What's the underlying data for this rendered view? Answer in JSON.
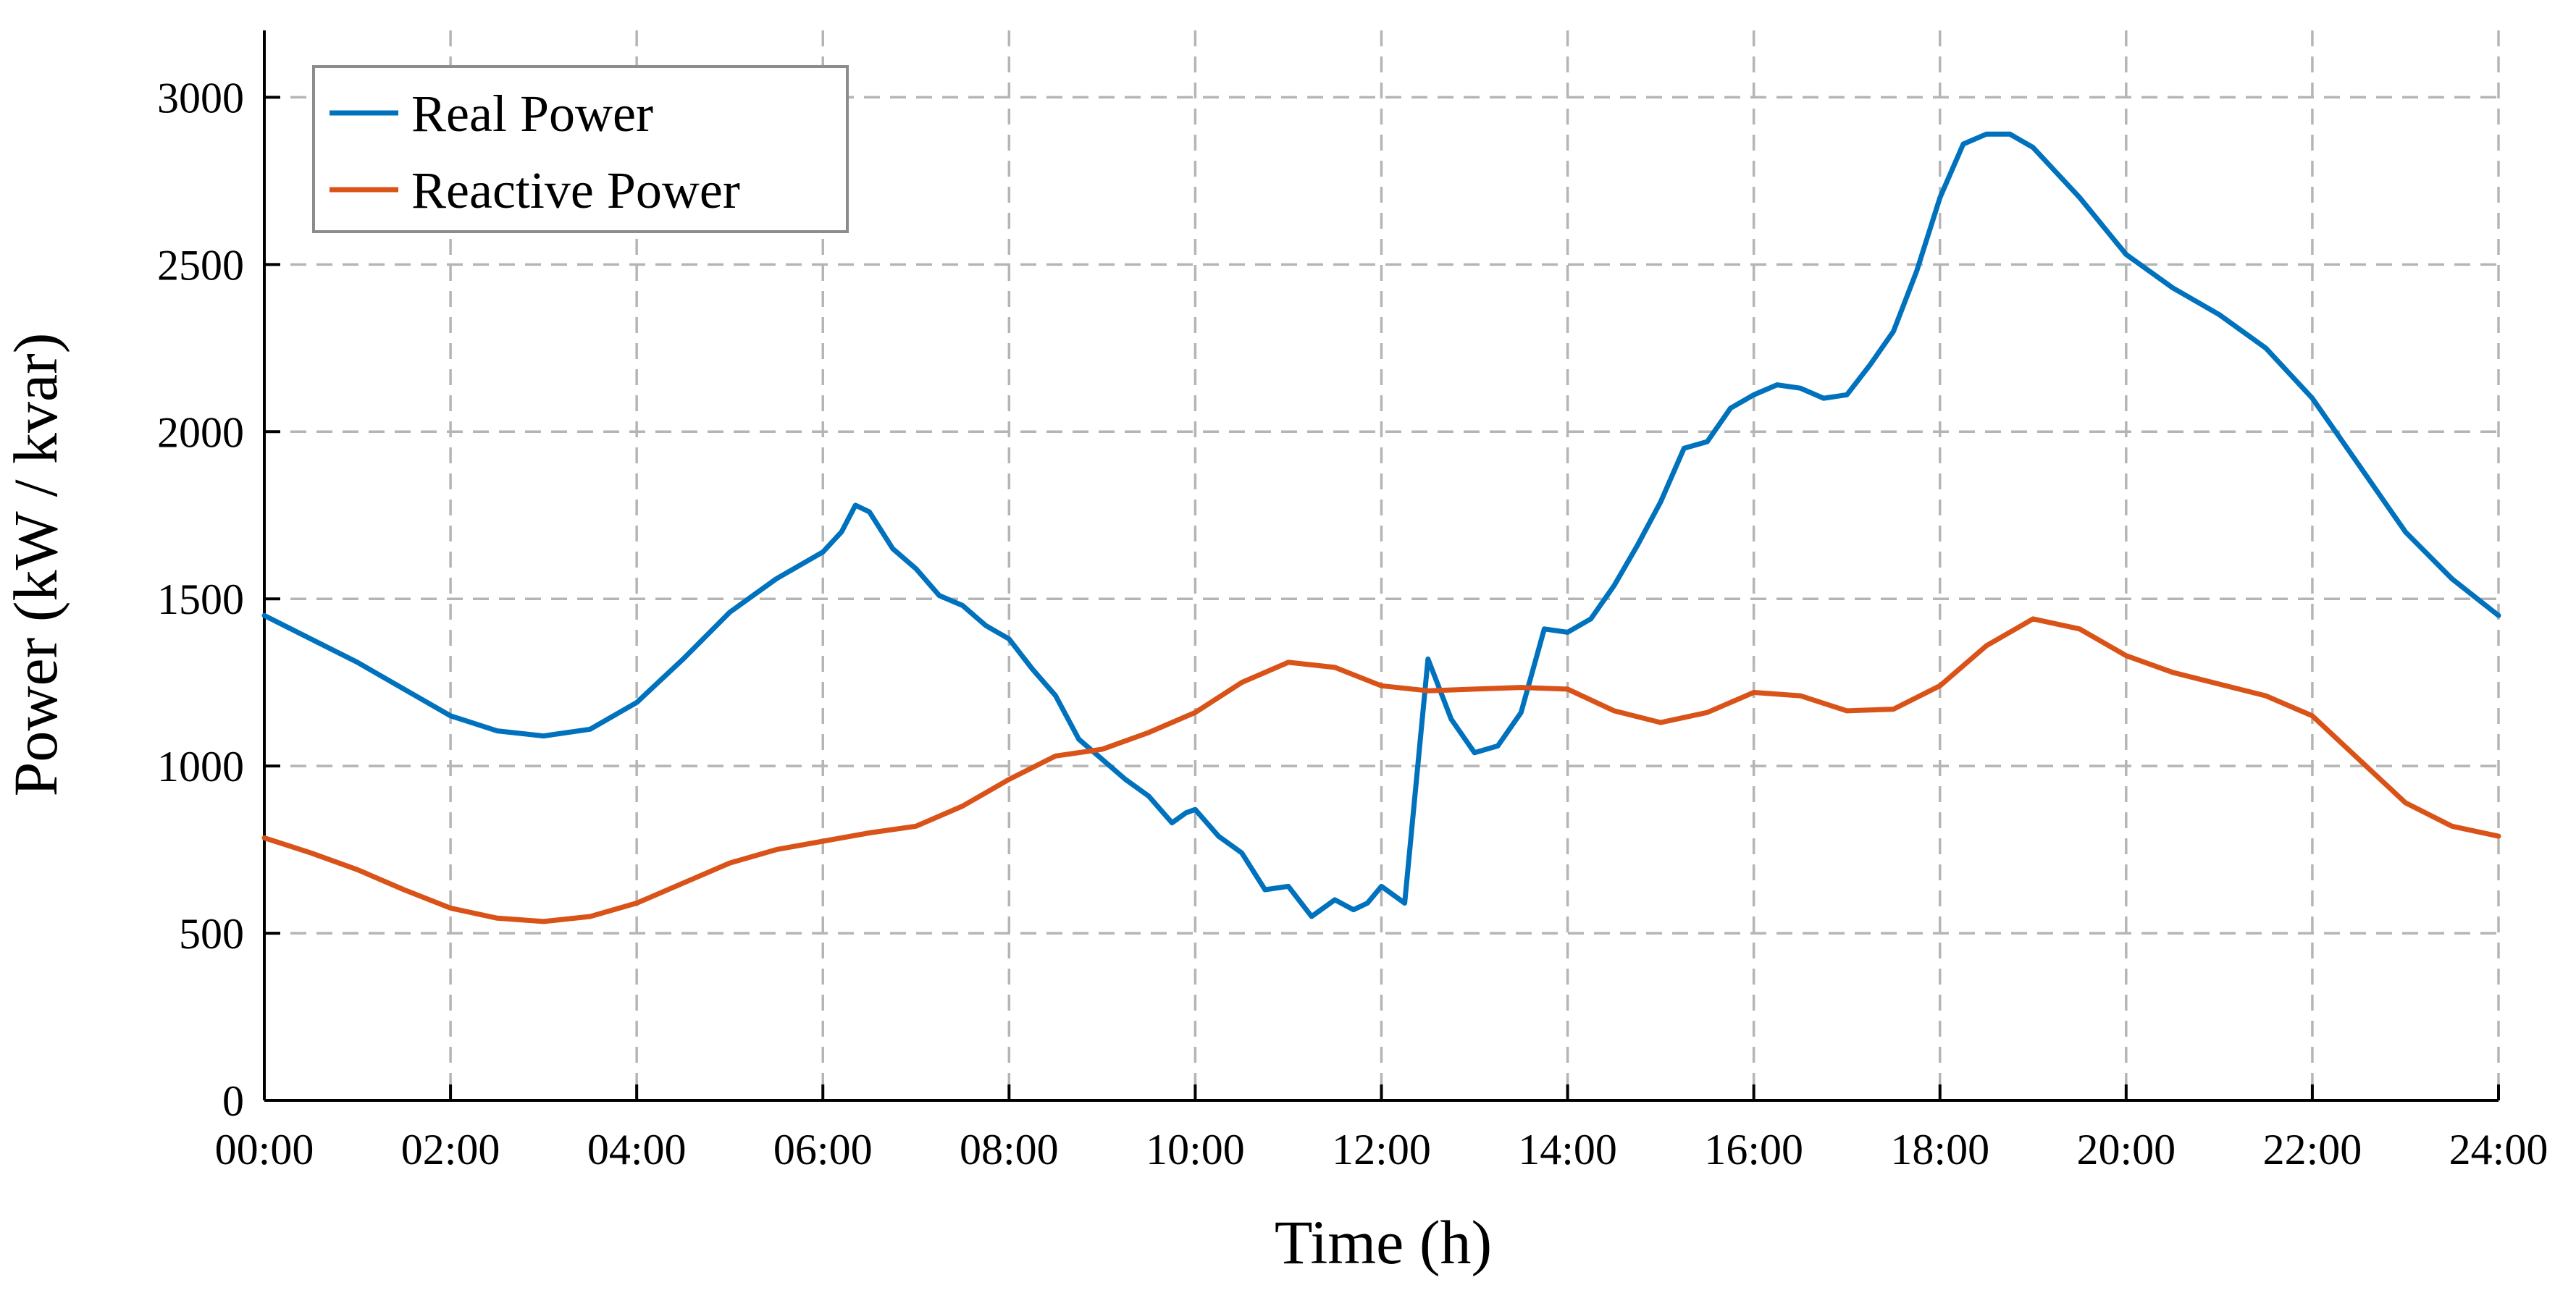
{
  "chart_data": {
    "type": "line",
    "title": "",
    "xlabel": "Time (h)",
    "ylabel": "Power (kW / kvar)",
    "xlim": [
      0,
      24
    ],
    "ylim": [
      0,
      3200
    ],
    "x_ticks": [
      0,
      2,
      4,
      6,
      8,
      10,
      12,
      14,
      16,
      18,
      20,
      22,
      24
    ],
    "x_tick_labels": [
      "00:00",
      "02:00",
      "04:00",
      "06:00",
      "08:00",
      "10:00",
      "12:00",
      "14:00",
      "16:00",
      "18:00",
      "20:00",
      "22:00",
      "24:00"
    ],
    "y_ticks": [
      0,
      500,
      1000,
      1500,
      2000,
      2500,
      3000
    ],
    "y_tick_labels": [
      "0",
      "500",
      "1000",
      "1500",
      "2000",
      "2500",
      "3000"
    ],
    "grid": true,
    "legend_position": "top-left",
    "series": [
      {
        "name": "Real Power",
        "color": "#0072BD",
        "x": [
          0,
          0.5,
          1,
          1.5,
          2,
          2.5,
          3,
          3.5,
          4,
          4.5,
          5,
          5.5,
          6,
          6.2,
          6.35,
          6.5,
          6.75,
          7,
          7.25,
          7.5,
          7.75,
          8,
          8.25,
          8.5,
          8.75,
          9,
          9.25,
          9.5,
          9.75,
          9.9,
          10,
          10.25,
          10.5,
          10.75,
          11,
          11.25,
          11.5,
          11.7,
          11.85,
          12,
          12.25,
          12.5,
          12.75,
          13,
          13.25,
          13.5,
          13.75,
          14,
          14.25,
          14.5,
          14.75,
          15,
          15.25,
          15.5,
          15.75,
          16,
          16.25,
          16.5,
          16.75,
          17,
          17.25,
          17.5,
          17.75,
          18,
          18.25,
          18.5,
          18.75,
          19,
          19.5,
          20,
          20.5,
          21,
          21.5,
          22,
          22.5,
          23,
          23.5,
          24
        ],
        "values": [
          1450,
          1380,
          1310,
          1230,
          1150,
          1105,
          1090,
          1110,
          1190,
          1320,
          1460,
          1560,
          1640,
          1700,
          1780,
          1760,
          1650,
          1590,
          1510,
          1480,
          1420,
          1380,
          1290,
          1210,
          1080,
          1020,
          960,
          910,
          830,
          860,
          870,
          790,
          740,
          630,
          640,
          550,
          600,
          570,
          590,
          640,
          590,
          1320,
          1140,
          1040,
          1060,
          1160,
          1410,
          1400,
          1440,
          1540,
          1660,
          1790,
          1950,
          1970,
          2070,
          2110,
          2140,
          2130,
          2100,
          2110,
          2200,
          2300,
          2480,
          2700,
          2860,
          2890,
          2890,
          2850,
          2700,
          2530,
          2430,
          2350,
          2250,
          2100,
          1900,
          1700,
          1560,
          1450
        ]
      },
      {
        "name": "Reactive Power",
        "color": "#D95319",
        "x": [
          0,
          0.5,
          1,
          1.5,
          2,
          2.5,
          3,
          3.5,
          4,
          4.5,
          5,
          5.5,
          6,
          6.5,
          7,
          7.5,
          8,
          8.5,
          9,
          9.5,
          10,
          10.5,
          11,
          11.5,
          12,
          12.5,
          13,
          13.5,
          14,
          14.5,
          15,
          15.5,
          16,
          16.5,
          17,
          17.5,
          18,
          18.5,
          19,
          19.5,
          20,
          20.5,
          21,
          21.5,
          22,
          22.5,
          23,
          23.5,
          24
        ],
        "values": [
          785,
          740,
          690,
          630,
          575,
          545,
          535,
          550,
          590,
          650,
          710,
          750,
          775,
          800,
          820,
          880,
          960,
          1030,
          1050,
          1100,
          1160,
          1250,
          1310,
          1295,
          1240,
          1225,
          1230,
          1235,
          1230,
          1165,
          1130,
          1160,
          1220,
          1210,
          1165,
          1170,
          1240,
          1360,
          1440,
          1410,
          1330,
          1280,
          1245,
          1210,
          1150,
          1020,
          890,
          820,
          790
        ]
      }
    ]
  }
}
